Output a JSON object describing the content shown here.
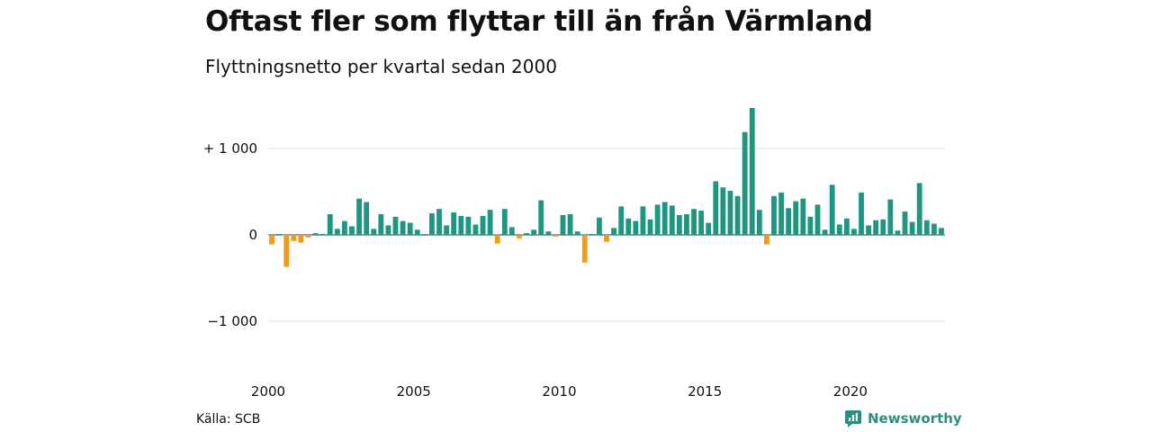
{
  "title": "Oftast fler som flyttar till än från Värmland",
  "subtitle": "Flyttningsnetto per kvartal sedan 2000",
  "source": "Källa: SCB",
  "brand": {
    "name": "Newsworthy",
    "icon": "newsworthy-logo-icon",
    "color": "#2b8e80"
  },
  "colors": {
    "positive": "#1f9682",
    "negative": "#f29a1b",
    "grid": "#dddddd",
    "zero": "#333333"
  },
  "chart_data": {
    "type": "bar",
    "ylim": [
      -1050,
      1500
    ],
    "y_ticks": [
      1000,
      0,
      -1000
    ],
    "y_tick_labels": [
      "+ 1 000",
      "0",
      "−1 000"
    ],
    "x_tick_labels": [
      "2000",
      "2005",
      "2010",
      "2015",
      "2020"
    ],
    "grid": true,
    "start_period": "2000 Q1",
    "values": [
      -110,
      10,
      -370,
      -70,
      -90,
      -30,
      20,
      10,
      240,
      70,
      160,
      100,
      420,
      380,
      70,
      240,
      110,
      210,
      160,
      140,
      60,
      10,
      250,
      300,
      110,
      260,
      220,
      210,
      120,
      220,
      290,
      -100,
      300,
      90,
      -40,
      20,
      60,
      400,
      40,
      -20,
      230,
      240,
      40,
      -320,
      10,
      200,
      -80,
      80,
      330,
      190,
      160,
      330,
      180,
      350,
      380,
      340,
      230,
      240,
      300,
      280,
      140,
      620,
      550,
      510,
      450,
      1190,
      1470,
      290,
      -110,
      450,
      490,
      310,
      390,
      420,
      210,
      350,
      60,
      580,
      120,
      190,
      70,
      490,
      110,
      170,
      180,
      410,
      50,
      270,
      150,
      600,
      170,
      130,
      80
    ]
  }
}
